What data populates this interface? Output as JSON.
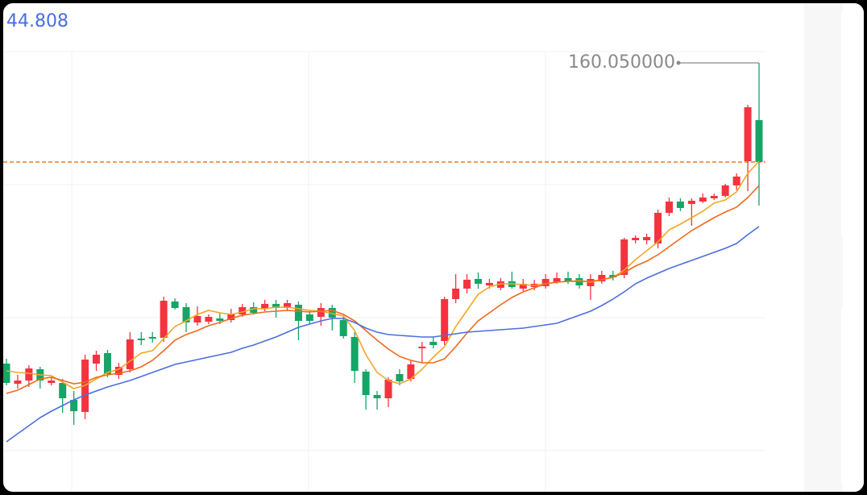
{
  "header_value": "44.808",
  "chart_data": {
    "type": "candlestick",
    "ylim": [
      136,
      160.75
    ],
    "up_color": "#f5333f",
    "down_color": "#14a567",
    "open": [
      141.4,
      140.15,
      140.35,
      141.05,
      140.2,
      140.2,
      139.15,
      138.4,
      141.4,
      142.05,
      140.7,
      141.05,
      142.95,
      143.05,
      143.0,
      145.25,
      144.9,
      143.95,
      144.0,
      144.2,
      144.1,
      144.45,
      144.9,
      144.8,
      145.1,
      144.85,
      145.05,
      144.45,
      144.3,
      144.85,
      144.1,
      143.05,
      140.9,
      139.45,
      139.25,
      140.75,
      140.45,
      142.35,
      142.75,
      142.8,
      145.4,
      146.05,
      146.65,
      146.25,
      146.1,
      146.5,
      146.05,
      146.15,
      146.2,
      146.45,
      146.7,
      146.7,
      146.2,
      146.5,
      146.9,
      146.9,
      149.05,
      149.05,
      148.85,
      150.75,
      151.45,
      151.3,
      151.45,
      151.65,
      151.8,
      152.45,
      153.95,
      156.5
    ],
    "high": [
      141.7,
      140.7,
      141.3,
      141.2,
      140.55,
      140.45,
      139.7,
      141.95,
      142.2,
      142.25,
      141.45,
      143.35,
      143.35,
      143.35,
      145.55,
      145.45,
      145.15,
      144.95,
      144.45,
      144.55,
      144.8,
      145.1,
      145.2,
      145.35,
      145.35,
      145.35,
      145.25,
      144.7,
      145.15,
      145.05,
      144.35,
      143.35,
      141.05,
      139.7,
      140.55,
      141.05,
      141.65,
      142.75,
      143.05,
      145.55,
      146.95,
      146.95,
      147.05,
      146.65,
      146.7,
      147.1,
      146.65,
      146.6,
      146.95,
      147.05,
      147.1,
      146.95,
      146.95,
      147.15,
      147.15,
      149.2,
      149.35,
      149.45,
      150.95,
      151.7,
      151.65,
      151.65,
      151.95,
      151.95,
      152.55,
      153.2,
      157.45,
      160.05
    ],
    "low": [
      140.05,
      139.85,
      139.95,
      139.85,
      140.05,
      138.35,
      137.6,
      137.95,
      140.95,
      140.55,
      140.45,
      140.85,
      142.55,
      142.7,
      142.75,
      144.75,
      143.35,
      143.75,
      143.85,
      143.85,
      143.95,
      144.3,
      144.45,
      144.65,
      144.25,
      144.65,
      142.85,
      143.85,
      143.75,
      143.45,
      142.95,
      140.2,
      138.55,
      138.55,
      138.7,
      140.05,
      140.3,
      141.45,
      142.35,
      142.55,
      145.15,
      145.75,
      146.05,
      146.05,
      145.95,
      146.05,
      145.9,
      145.95,
      146.05,
      146.35,
      146.35,
      146.05,
      145.35,
      146.35,
      146.55,
      146.7,
      148.85,
      148.8,
      148.55,
      150.55,
      150.85,
      149.95,
      151.35,
      151.55,
      151.7,
      152.15,
      152.1,
      151.2
    ],
    "close": [
      140.2,
      140.35,
      141.1,
      140.35,
      140.35,
      139.25,
      138.45,
      141.65,
      141.95,
      140.75,
      141.2,
      142.9,
      142.85,
      142.95,
      145.3,
      144.85,
      143.95,
      144.35,
      144.3,
      144.05,
      144.45,
      144.9,
      144.55,
      145.1,
      144.85,
      145.15,
      144.05,
      144.05,
      144.85,
      144.25,
      143.1,
      140.95,
      139.45,
      139.25,
      140.4,
      140.3,
      141.35,
      142.45,
      142.55,
      145.4,
      146.05,
      146.6,
      146.35,
      146.4,
      146.5,
      146.15,
      146.35,
      146.35,
      146.65,
      146.7,
      146.5,
      146.25,
      146.65,
      146.9,
      146.75,
      149.1,
      149.2,
      149.25,
      150.75,
      151.45,
      151.05,
      151.5,
      151.7,
      151.8,
      152.45,
      153.0,
      157.3,
      153.9
    ],
    "lines": [
      {
        "color": "#f5a623",
        "values": [
          140.95,
          140.85,
          140.8,
          140.7,
          140.65,
          140.25,
          139.85,
          140.05,
          140.45,
          140.85,
          141.05,
          141.55,
          142.05,
          142.2,
          142.95,
          143.7,
          144.05,
          144.45,
          144.7,
          144.55,
          144.45,
          144.6,
          144.8,
          144.8,
          144.9,
          144.9,
          144.8,
          144.7,
          144.65,
          144.5,
          144.35,
          143.45,
          141.95,
          140.85,
          140.35,
          140.15,
          140.45,
          141.05,
          141.8,
          142.45,
          143.7,
          144.7,
          145.7,
          146.15,
          146.35,
          146.35,
          146.3,
          146.25,
          146.35,
          146.45,
          146.5,
          146.55,
          146.45,
          146.6,
          146.75,
          147.2,
          147.85,
          148.4,
          148.95,
          149.7,
          150.05,
          150.45,
          150.85,
          151.35,
          151.55,
          152.05,
          153.2,
          153.95
        ]
      },
      {
        "color": "#f06a1e",
        "values": [
          139.55,
          139.75,
          140.1,
          140.45,
          140.55,
          140.35,
          140.15,
          140.25,
          140.55,
          140.7,
          140.8,
          140.95,
          141.2,
          141.6,
          142.2,
          142.85,
          143.2,
          143.45,
          143.75,
          143.95,
          144.2,
          144.4,
          144.5,
          144.6,
          144.65,
          144.7,
          144.65,
          144.6,
          144.65,
          144.7,
          144.45,
          144.05,
          143.45,
          142.85,
          142.3,
          141.85,
          141.6,
          141.45,
          141.45,
          141.7,
          142.45,
          143.3,
          144.05,
          144.55,
          145.05,
          145.5,
          145.85,
          146.1,
          146.35,
          146.45,
          146.5,
          146.5,
          146.5,
          146.6,
          146.75,
          147.05,
          147.45,
          147.75,
          148.15,
          148.65,
          149.15,
          149.65,
          150.05,
          150.45,
          150.8,
          151.1,
          151.7,
          152.45
        ]
      },
      {
        "color": "#4a6ee0",
        "values": [
          136.55,
          137.05,
          137.55,
          138.05,
          138.45,
          138.8,
          139.15,
          139.45,
          139.7,
          139.95,
          140.15,
          140.35,
          140.6,
          140.85,
          141.1,
          141.35,
          141.5,
          141.65,
          141.8,
          141.95,
          142.1,
          142.35,
          142.55,
          142.8,
          143.05,
          143.35,
          143.65,
          143.85,
          144.05,
          144.2,
          144.2,
          143.95,
          143.6,
          143.35,
          143.2,
          143.15,
          143.1,
          143.05,
          143.05,
          143.15,
          143.25,
          143.35,
          143.4,
          143.45,
          143.5,
          143.55,
          143.6,
          143.7,
          143.8,
          143.9,
          144.15,
          144.4,
          144.65,
          145.0,
          145.4,
          145.85,
          146.35,
          146.7,
          147.0,
          147.3,
          147.55,
          147.8,
          148.05,
          148.3,
          148.55,
          148.85,
          149.4,
          149.9
        ]
      }
    ],
    "price_line": {
      "value": 153.9,
      "color": "#f07a24"
    },
    "high_label": {
      "value": 160.05,
      "label": "160.050000"
    }
  }
}
